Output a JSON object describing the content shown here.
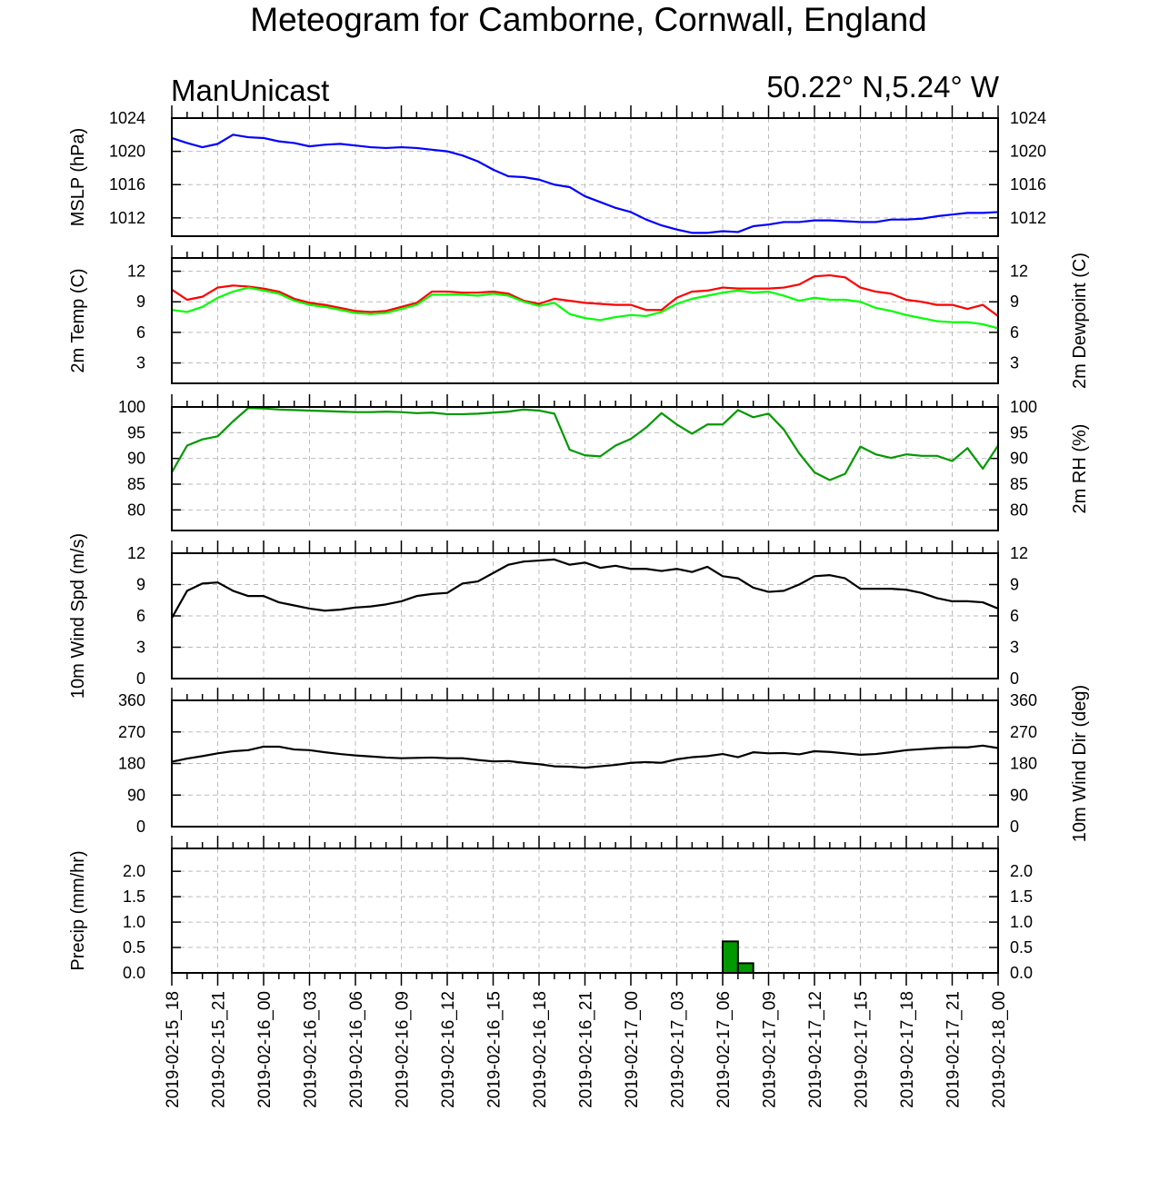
{
  "title": "Meteogram for Camborne, Cornwall, England",
  "model_label": "ManUnicast",
  "location_label": "50.22° N,5.24° W",
  "time_labels": [
    "2019-02-15_18",
    "2019-02-15_21",
    "2019-02-16_00",
    "2019-02-16_03",
    "2019-02-16_06",
    "2019-02-16_09",
    "2019-02-16_12",
    "2019-02-16_15",
    "2019-02-16_18",
    "2019-02-16_21",
    "2019-02-17_00",
    "2019-02-17_03",
    "2019-02-17_06",
    "2019-02-17_09",
    "2019-02-17_12",
    "2019-02-17_15",
    "2019-02-17_18",
    "2019-02-17_21",
    "2019-02-18_00"
  ],
  "colors": {
    "mslp": "#0000ff",
    "temperature": "#ff0000",
    "dewpoint": "#00ff00",
    "rh": "#009900",
    "wind_speed": "#000000",
    "wind_dir": "#000000",
    "precip_fill": "#009900",
    "grid": "#bbbbbb"
  },
  "chart_data": [
    {
      "type": "line",
      "ylabel": "MSLP (hPa)",
      "ylim": [
        1009.8,
        1024
      ],
      "yticks": [
        1012,
        1016,
        1020,
        1024
      ],
      "right_ticks": [
        1012,
        1016,
        1020,
        1024
      ],
      "grid": true,
      "x_hours": [
        0,
        1,
        2,
        3,
        4,
        5,
        6,
        7,
        8,
        9,
        10,
        11,
        12,
        13,
        14,
        15,
        16,
        17,
        18,
        19,
        20,
        21,
        22,
        23,
        24,
        25,
        26,
        27,
        28,
        29,
        30,
        31,
        32,
        33,
        34,
        35,
        36,
        37,
        38,
        39,
        40,
        41,
        42,
        43,
        44,
        45,
        46,
        47,
        48,
        49,
        50,
        51,
        52,
        53,
        54
      ],
      "series": [
        {
          "color_key": "mslp",
          "values": [
            1021.6,
            1021.0,
            1020.5,
            1020.9,
            1022.0,
            1021.7,
            1021.6,
            1021.2,
            1021.0,
            1020.6,
            1020.8,
            1020.9,
            1020.7,
            1020.5,
            1020.4,
            1020.5,
            1020.4,
            1020.2,
            1020.0,
            1019.5,
            1018.8,
            1017.8,
            1017.0,
            1016.9,
            1016.6,
            1016.0,
            1015.7,
            1014.6,
            1013.9,
            1013.2,
            1012.7,
            1011.8,
            1011.1,
            1010.6,
            1010.2,
            1010.2,
            1010.4,
            1010.3,
            1011.0,
            1011.2,
            1011.5,
            1011.5,
            1011.7,
            1011.7,
            1011.6,
            1011.5,
            1011.5,
            1011.8,
            1011.8,
            1011.9,
            1012.2,
            1012.4,
            1012.6,
            1012.6,
            1012.7
          ]
        }
      ]
    },
    {
      "type": "line",
      "ylabel": "2m Temp (C)",
      "ylabel_right": "2m Dewpoint (C)",
      "ylim": [
        1,
        13.3
      ],
      "yticks": [
        3,
        6,
        9,
        12
      ],
      "right_ticks": [
        3,
        6,
        9,
        12
      ],
      "grid": true,
      "x_hours": [
        0,
        1,
        2,
        3,
        4,
        5,
        6,
        7,
        8,
        9,
        10,
        11,
        12,
        13,
        14,
        15,
        16,
        17,
        18,
        19,
        20,
        21,
        22,
        23,
        24,
        25,
        26,
        27,
        28,
        29,
        30,
        31,
        32,
        33,
        34,
        35,
        36,
        37,
        38,
        39,
        40,
        41,
        42,
        43,
        44,
        45,
        46,
        47,
        48,
        49,
        50,
        51,
        52,
        53,
        54
      ],
      "series": [
        {
          "color_key": "temperature",
          "values": [
            10.2,
            9.2,
            9.5,
            10.4,
            10.6,
            10.5,
            10.3,
            10.0,
            9.3,
            8.9,
            8.7,
            8.4,
            8.1,
            8.0,
            8.1,
            8.5,
            8.9,
            10.0,
            10.0,
            9.9,
            9.9,
            10.0,
            9.8,
            9.1,
            8.8,
            9.3,
            9.1,
            8.9,
            8.8,
            8.7,
            8.7,
            8.2,
            8.2,
            9.4,
            10.0,
            10.1,
            10.4,
            10.3,
            10.3,
            10.3,
            10.4,
            10.7,
            11.5,
            11.6,
            11.4,
            10.4,
            10.0,
            9.8,
            9.2,
            9.0,
            8.7,
            8.7,
            8.3,
            8.7,
            7.6
          ]
        },
        {
          "color_key": "dewpoint",
          "values": [
            8.2,
            8.0,
            8.5,
            9.4,
            10.0,
            10.4,
            10.1,
            9.8,
            9.1,
            8.7,
            8.5,
            8.2,
            7.9,
            7.8,
            7.9,
            8.3,
            8.7,
            9.7,
            9.7,
            9.7,
            9.6,
            9.8,
            9.6,
            9.0,
            8.6,
            8.9,
            7.8,
            7.4,
            7.2,
            7.5,
            7.7,
            7.6,
            8.0,
            8.8,
            9.3,
            9.6,
            9.9,
            10.1,
            9.9,
            10.0,
            9.6,
            9.1,
            9.4,
            9.2,
            9.2,
            9.0,
            8.4,
            8.1,
            7.7,
            7.4,
            7.1,
            7.0,
            7.0,
            6.8,
            6.4
          ]
        }
      ]
    },
    {
      "type": "line",
      "ylabel_right": "2m RH (%)",
      "ylim": [
        76,
        100
      ],
      "yticks": [
        80,
        85,
        90,
        95,
        100
      ],
      "right_ticks": [
        80,
        85,
        90,
        95,
        100
      ],
      "grid": true,
      "x_hours": [
        0,
        1,
        2,
        3,
        4,
        5,
        6,
        7,
        8,
        9,
        10,
        11,
        12,
        13,
        14,
        15,
        16,
        17,
        18,
        19,
        20,
        21,
        22,
        23,
        24,
        25,
        26,
        27,
        28,
        29,
        30,
        31,
        32,
        33,
        34,
        35,
        36,
        37,
        38,
        39,
        40,
        41,
        42,
        43,
        44,
        45,
        46,
        47,
        48,
        49,
        50,
        51,
        52,
        53,
        54
      ],
      "series": [
        {
          "color_key": "rh",
          "values": [
            87.3,
            92.5,
            93.7,
            94.3,
            97.2,
            99.8,
            99.7,
            99.5,
            99.4,
            99.3,
            99.2,
            99.1,
            99.0,
            99.0,
            99.1,
            99.0,
            98.8,
            98.9,
            98.6,
            98.6,
            98.7,
            98.9,
            99.1,
            99.5,
            99.3,
            98.7,
            91.7,
            90.6,
            90.4,
            92.5,
            93.8,
            96.0,
            98.8,
            96.6,
            94.8,
            96.6,
            96.6,
            99.4,
            98.0,
            98.7,
            95.6,
            91.0,
            87.3,
            85.8,
            87.0,
            92.3,
            90.8,
            90.1,
            90.8,
            90.5,
            90.5,
            89.5,
            92.0,
            88.0,
            92.5
          ]
        }
      ]
    },
    {
      "type": "line",
      "ylabel": "10m Wind Spd (m/s)",
      "ylim": [
        0,
        12
      ],
      "yticks": [
        0,
        3,
        6,
        9,
        12
      ],
      "right_ticks": [
        0,
        3,
        6,
        9,
        12
      ],
      "grid": true,
      "x_hours": [
        0,
        1,
        2,
        3,
        4,
        5,
        6,
        7,
        8,
        9,
        10,
        11,
        12,
        13,
        14,
        15,
        16,
        17,
        18,
        19,
        20,
        21,
        22,
        23,
        24,
        25,
        26,
        27,
        28,
        29,
        30,
        31,
        32,
        33,
        34,
        35,
        36,
        37,
        38,
        39,
        40,
        41,
        42,
        43,
        44,
        45,
        46,
        47,
        48,
        49,
        50,
        51,
        52,
        53,
        54
      ],
      "series": [
        {
          "color_key": "wind_speed",
          "values": [
            5.8,
            8.4,
            9.1,
            9.2,
            8.4,
            7.9,
            7.9,
            7.3,
            7.0,
            6.7,
            6.5,
            6.6,
            6.8,
            6.9,
            7.1,
            7.4,
            7.9,
            8.1,
            8.2,
            9.1,
            9.3,
            10.1,
            10.9,
            11.2,
            11.3,
            11.4,
            10.9,
            11.1,
            10.6,
            10.8,
            10.5,
            10.5,
            10.3,
            10.5,
            10.2,
            10.7,
            9.8,
            9.6,
            8.7,
            8.3,
            8.4,
            9.0,
            9.8,
            9.9,
            9.6,
            8.6,
            8.6,
            8.6,
            8.5,
            8.2,
            7.7,
            7.4,
            7.4,
            7.3,
            6.7
          ]
        }
      ]
    },
    {
      "type": "line",
      "ylabel_right": "10m Wind Dir (deg)",
      "ylim": [
        0,
        360
      ],
      "yticks": [
        0,
        90,
        180,
        270,
        360
      ],
      "right_ticks": [
        0,
        90,
        180,
        270,
        360
      ],
      "grid": true,
      "x_hours": [
        0,
        1,
        2,
        3,
        4,
        5,
        6,
        7,
        8,
        9,
        10,
        11,
        12,
        13,
        14,
        15,
        16,
        17,
        18,
        19,
        20,
        21,
        22,
        23,
        24,
        25,
        26,
        27,
        28,
        29,
        30,
        31,
        32,
        33,
        34,
        35,
        36,
        37,
        38,
        39,
        40,
        41,
        42,
        43,
        44,
        45,
        46,
        47,
        48,
        49,
        50,
        51,
        52,
        53,
        54
      ],
      "series": [
        {
          "color_key": "wind_dir",
          "values": [
            185,
            194,
            201,
            209,
            215,
            218,
            228,
            228,
            220,
            218,
            212,
            207,
            203,
            200,
            197,
            195,
            196,
            197,
            195,
            195,
            190,
            186,
            187,
            182,
            178,
            172,
            171,
            168,
            172,
            176,
            182,
            184,
            182,
            192,
            198,
            201,
            207,
            198,
            212,
            209,
            210,
            206,
            215,
            213,
            209,
            205,
            207,
            212,
            218,
            221,
            224,
            226,
            226,
            231,
            224
          ]
        }
      ]
    },
    {
      "type": "bar",
      "ylabel": "Precip (mm/hr)",
      "ylim": [
        0,
        2.45
      ],
      "yticks": [
        "0.0",
        "0.5",
        "1.0",
        "1.5",
        "2.0"
      ],
      "right_ticks": [
        "0.0",
        "0.5",
        "1.0",
        "1.5",
        "2.0"
      ],
      "grid": true,
      "bars": [
        {
          "hour": 36,
          "value": 0.62
        },
        {
          "hour": 37,
          "value": 0.19
        }
      ],
      "trace_bars": [
        {
          "hour": 5,
          "value": 0.01
        },
        {
          "hour": 6,
          "value": 0.01
        },
        {
          "hour": 17,
          "value": 0.01
        },
        {
          "hour": 18,
          "value": 0.01
        },
        {
          "hour": 19,
          "value": 0.01
        },
        {
          "hour": 20,
          "value": 0.01
        }
      ]
    }
  ]
}
